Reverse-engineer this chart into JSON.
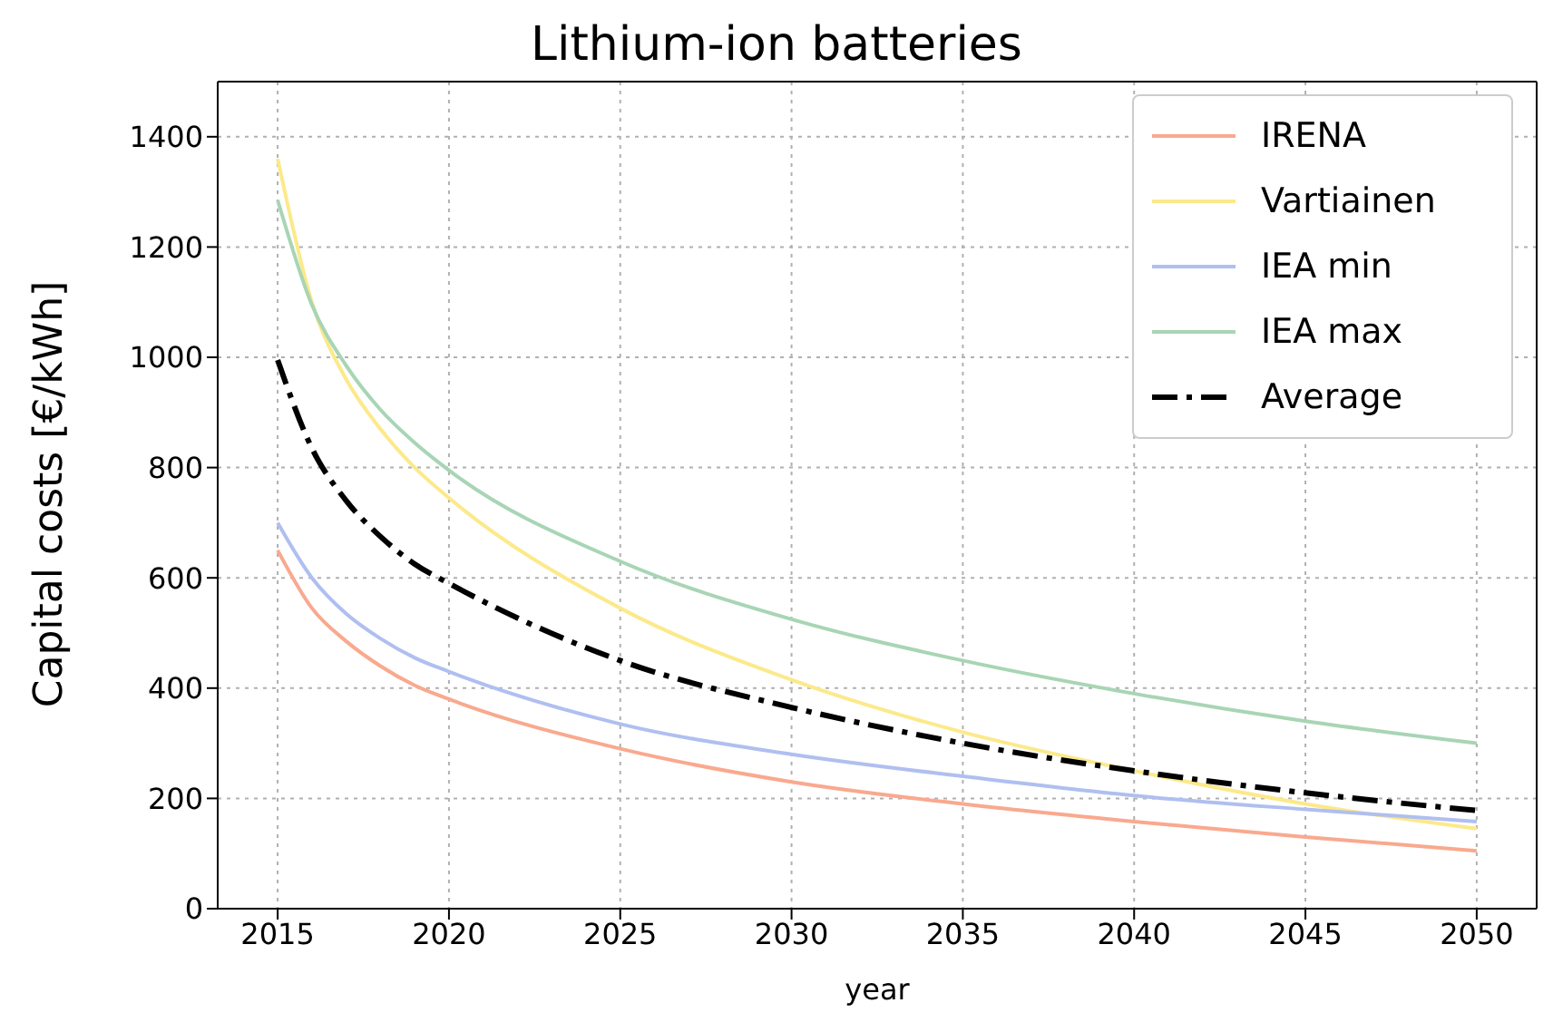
{
  "chart_data": {
    "type": "line",
    "title": "Lithium-ion batteries",
    "xlabel": "year",
    "ylabel": "Capital costs [€/kWh]",
    "x": [
      2015,
      2016,
      2017,
      2018,
      2019,
      2020,
      2025,
      2030,
      2035,
      2040,
      2045,
      2050
    ],
    "series": [
      {
        "name": "IRENA",
        "color": "#f9a98e",
        "values": [
          650,
          545,
          485,
          440,
          405,
          380,
          290,
          230,
          190,
          158,
          130,
          105
        ]
      },
      {
        "name": "Vartiainen",
        "color": "#fce98a",
        "values": [
          1360,
          1100,
          960,
          870,
          800,
          745,
          545,
          415,
          320,
          250,
          190,
          145
        ]
      },
      {
        "name": "IEA min",
        "color": "#b0bff0",
        "values": [
          700,
          600,
          535,
          490,
          455,
          430,
          335,
          280,
          240,
          205,
          180,
          158
        ]
      },
      {
        "name": "IEA max",
        "color": "#a8d5b5",
        "values": [
          1285,
          1095,
          985,
          905,
          845,
          795,
          630,
          525,
          450,
          390,
          340,
          300
        ]
      },
      {
        "name": "Average",
        "color": "#000000",
        "line_style": "dashed",
        "values": [
          995,
          835,
          740,
          675,
          625,
          590,
          450,
          365,
          300,
          250,
          210,
          178
        ]
      }
    ],
    "xlim": [
      2013.25,
      2051.75
    ],
    "xticks": [
      2015,
      2020,
      2025,
      2030,
      2035,
      2040,
      2045,
      2050
    ],
    "ylim": [
      0,
      1500
    ],
    "yticks": [
      0,
      200,
      400,
      600,
      800,
      1000,
      1200,
      1400
    ],
    "grid": true,
    "legend": "top right",
    "marker": "none"
  }
}
